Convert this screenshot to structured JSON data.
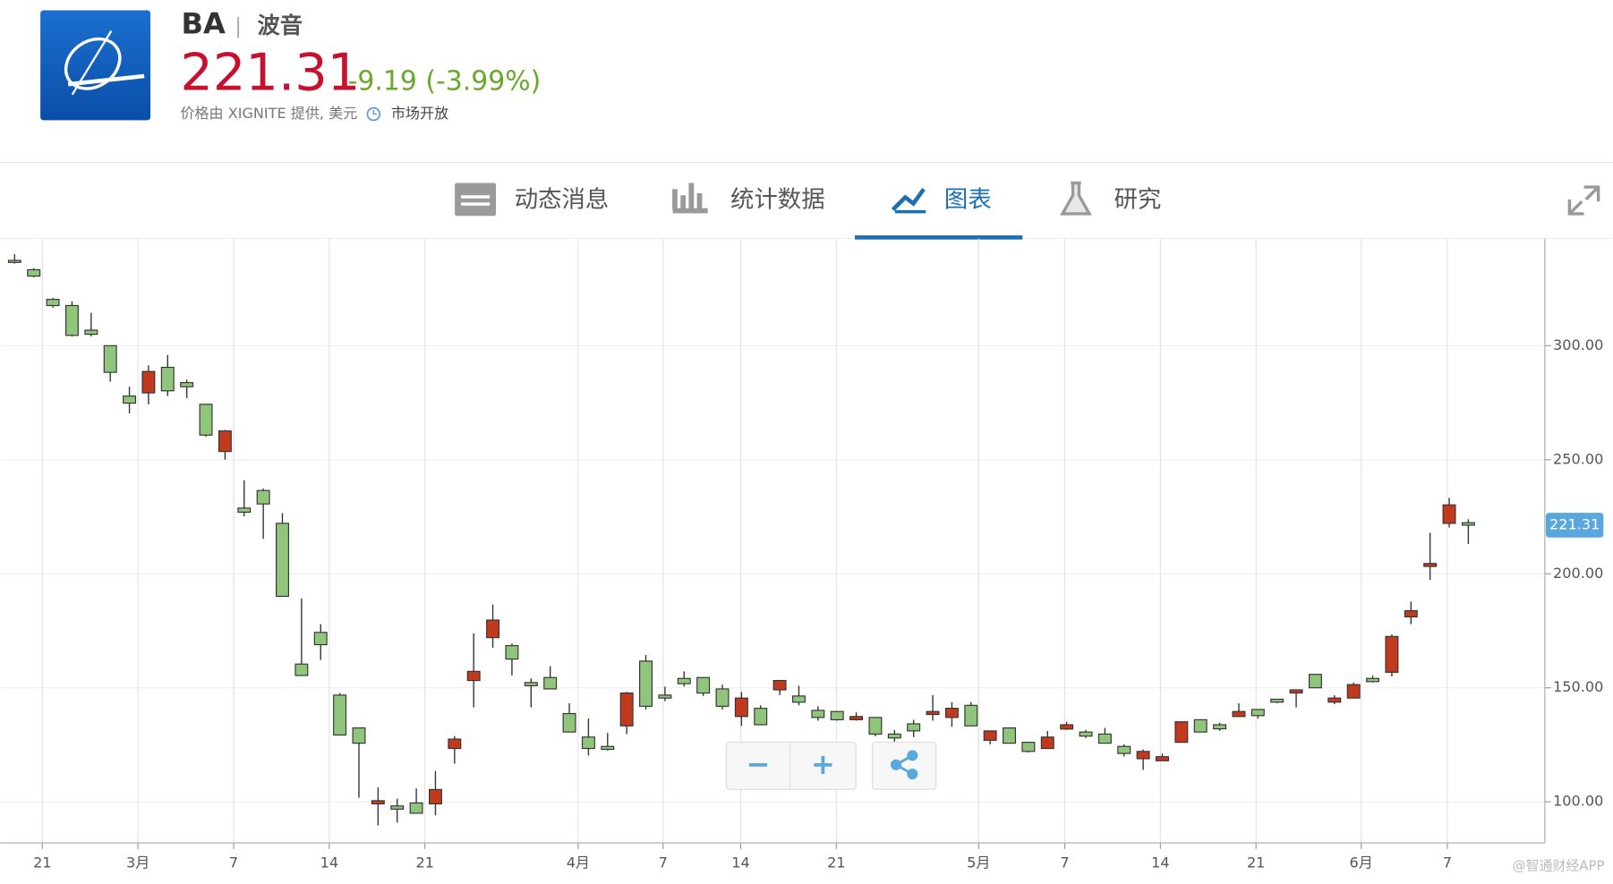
{
  "header": {
    "ticker": "BA",
    "separator": "|",
    "name": "波音",
    "price": "221.31",
    "change": "-9.19 (-3.99%)",
    "source": "价格由 XIGNITE 提供, 美元",
    "status": "市场开放"
  },
  "tabs": [
    "动态消息",
    "统计数据",
    "图表",
    "研究"
  ],
  "controls": {
    "zoom_out": "−",
    "zoom_in": "+"
  },
  "watermark": "@智通财经APP",
  "chart_data": {
    "type": "candlestick",
    "xlim": [
      -0.75,
      80
    ],
    "xticks": [
      {
        "value": 1.45,
        "label": "21"
      },
      {
        "value": 6.45,
        "label": "3月"
      },
      {
        "value": 11.45,
        "label": "7"
      },
      {
        "value": 16.45,
        "label": "14"
      },
      {
        "value": 21.45,
        "label": "21"
      },
      {
        "value": 29.46,
        "label": "4月"
      },
      {
        "value": 33.9,
        "label": "7"
      },
      {
        "value": 37.96,
        "label": "14"
      },
      {
        "value": 42.96,
        "label": "21"
      },
      {
        "value": 50.4,
        "label": "5月"
      },
      {
        "value": 54.9,
        "label": "7"
      },
      {
        "value": 59.9,
        "label": "14"
      },
      {
        "value": 64.9,
        "label": "21"
      },
      {
        "value": 70.4,
        "label": "6月"
      },
      {
        "value": 74.9,
        "label": "7"
      }
    ],
    "ylim": [
      82,
      347
    ],
    "yticks": [
      {
        "value": 100,
        "label": "100.00"
      },
      {
        "value": 150,
        "label": "150.00"
      },
      {
        "value": 200,
        "label": "200.00"
      },
      {
        "value": 250,
        "label": "250.00"
      },
      {
        "value": 300,
        "label": "300.00"
      }
    ],
    "up_color": "#c23a1e",
    "down_color": "#8fc67c",
    "grid": true,
    "last_price": 221.31,
    "open": [
      337.4,
      333.3,
      320.3,
      317.6,
      306.8,
      300,
      277.9,
      279.3,
      290.5,
      283.8,
      274.3,
      253.6,
      228.8,
      236.5,
      222.1,
      160.4,
      174.3,
      146.8,
      132.4,
      99.1,
      98.2,
      99.5,
      99.1,
      123.4,
      153.2,
      172,
      168.5,
      152.3,
      154.5,
      138.7,
      128.4,
      124.3,
      133.3,
      161.7,
      146.8,
      154.1,
      154.5,
      149.5,
      137.4,
      141,
      149.1,
      146.4,
      140.1,
      139.6,
      136,
      137,
      129.7,
      134.2,
      138.3,
      137,
      142.3,
      127,
      132.4,
      126.1,
      123.4,
      131.9,
      130.6,
      129.7,
      124.3,
      118.9,
      118,
      126.1,
      136,
      133.8,
      137.4,
      140.5,
      145,
      147.7,
      155.9,
      143.7,
      145.5,
      154.1,
      156.8,
      181.1,
      203.2,
      222.1,
      222.4
    ],
    "high": [
      340.1,
      334,
      321,
      319.4,
      314.4,
      300,
      282,
      291.4,
      295.9,
      285.1,
      274.3,
      263.1,
      241,
      237.4,
      226.6,
      189.2,
      177.9,
      147.7,
      132.4,
      106.3,
      101.4,
      105.9,
      113.5,
      128.8,
      173.9,
      186.5,
      169.4,
      154.1,
      159.5,
      143.2,
      136.5,
      130.2,
      148.2,
      164.4,
      150.5,
      157.2,
      154.5,
      151.4,
      148.2,
      142.3,
      153.2,
      150.9,
      141.9,
      139.6,
      139.2,
      137,
      131.5,
      136,
      146.8,
      143.7,
      143.7,
      131.1,
      132.4,
      126.1,
      131.1,
      135.1,
      131.5,
      132.4,
      125.2,
      123,
      121.2,
      135.1,
      136,
      134.7,
      143.2,
      140.5,
      145,
      149.1,
      155.9,
      146.8,
      152.3,
      155.4,
      173.4,
      187.8,
      218,
      233.3,
      223.9
    ],
    "low": [
      336,
      330,
      316.7,
      304,
      304,
      284.2,
      270.3,
      274.3,
      277.9,
      277,
      260,
      250,
      225.2,
      215.3,
      190.1,
      155.4,
      162.2,
      129.3,
      101.8,
      89.6,
      90.9,
      95,
      94.1,
      116.7,
      141.4,
      167.6,
      155.4,
      141.4,
      149.5,
      130.6,
      120.3,
      122.5,
      129.7,
      140.5,
      144.1,
      150.5,
      146.4,
      140.5,
      133.3,
      133.8,
      146.8,
      142.3,
      135.6,
      135.6,
      135.6,
      128.8,
      126.1,
      128.4,
      135.6,
      132.9,
      133.3,
      125.2,
      125.7,
      121.6,
      123.4,
      131.5,
      128,
      125.7,
      119.9,
      114,
      118,
      126.1,
      130.6,
      131.1,
      137.4,
      136.5,
      143.2,
      141.4,
      150,
      142.8,
      145.5,
      152.3,
      155,
      177.9,
      197.3,
      220.3,
      213.1
    ],
    "close": [
      336.5,
      330.5,
      317.6,
      304.5,
      305,
      288.3,
      274.8,
      288.7,
      280.2,
      282,
      260.8,
      262.6,
      227,
      230.6,
      190.1,
      155.4,
      168.9,
      129.3,
      125.7,
      100.5,
      96.8,
      95,
      105.4,
      127.5,
      157.2,
      179.7,
      162.6,
      150.9,
      149.5,
      130.6,
      123.4,
      123,
      147.7,
      141.9,
      145.5,
      151.8,
      147.7,
      141.9,
      145.5,
      133.8,
      153.2,
      143.7,
      137,
      136,
      137.4,
      129.7,
      128,
      131.1,
      139.6,
      141,
      133.3,
      131.1,
      125.7,
      122.1,
      128.4,
      133.8,
      128.8,
      125.7,
      121.2,
      122.1,
      119.8,
      135.1,
      130.6,
      132,
      139.6,
      137.8,
      143.7,
      149.1,
      150,
      145.5,
      151.4,
      152.7,
      172.5,
      183.8,
      204.5,
      230.2,
      221.31
    ]
  }
}
